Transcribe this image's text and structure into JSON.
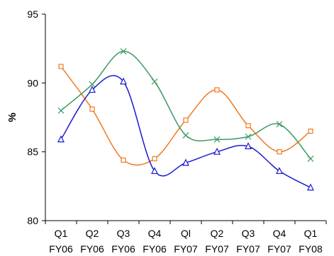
{
  "chart_data": {
    "type": "line",
    "categories": [
      [
        "Q1",
        "FY06"
      ],
      [
        "Q2",
        "FY06"
      ],
      [
        "Q3",
        "FY06"
      ],
      [
        "Q4",
        "FY06"
      ],
      [
        "Ql",
        "FY07"
      ],
      [
        "Q2",
        "FY07"
      ],
      [
        "Q3",
        "FY07"
      ],
      [
        "Q4",
        "FY07"
      ],
      [
        "Q1",
        "FY08"
      ]
    ],
    "ylabel": "%",
    "xlabel": "",
    "title": "",
    "ylim": [
      80,
      95
    ],
    "yticks": [
      80,
      85,
      90,
      95
    ],
    "grid": false,
    "legend": "none",
    "smooth": true,
    "series": [
      {
        "marker": "square",
        "color": "#f07820",
        "values": [
          91.2,
          88.1,
          84.4,
          84.5,
          87.3,
          89.5,
          86.9,
          85.0,
          86.5
        ]
      },
      {
        "marker": "x",
        "color": "#3a9a62",
        "values": [
          88.0,
          89.9,
          92.3,
          90.1,
          86.2,
          85.9,
          86.1,
          87.0,
          84.5
        ]
      },
      {
        "marker": "triangle",
        "color": "#1a1ad0",
        "values": [
          85.9,
          89.5,
          90.1,
          83.6,
          84.2,
          85.0,
          85.4,
          83.6,
          82.4
        ]
      }
    ]
  }
}
